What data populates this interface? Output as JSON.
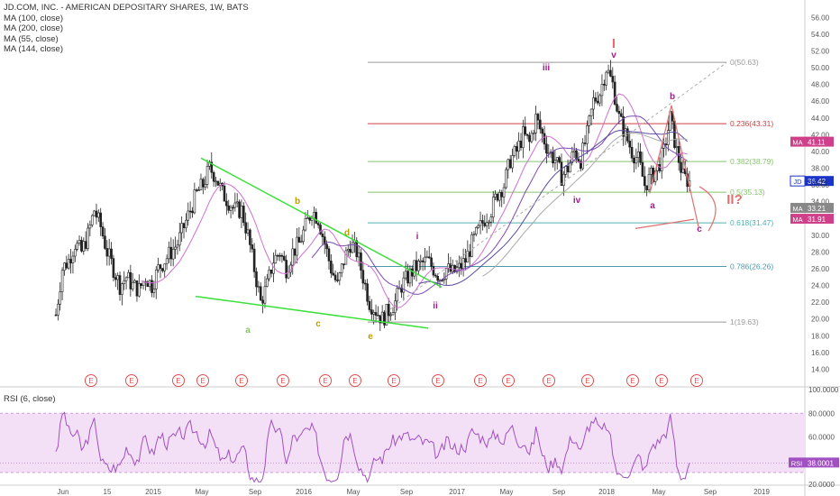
{
  "legend": {
    "title": "JD.COM, INC. - AMERICAN DEPOSITARY SHARES, 1W, BATS",
    "ma_lines": [
      "MA (100, close)",
      "MA (200, close)",
      "MA (55, close)",
      "MA (144, close)"
    ]
  },
  "rsi_legend": "RSI (6, close)",
  "colors": {
    "candle": "#222222",
    "ma_purple": "#7b4ab5",
    "ma_pink": "#d070d0",
    "trend_green": "#3ce03c",
    "fib_red": "#d04040",
    "fib_green": "#86c56d",
    "fib_teal": "#50b0b0",
    "fib_blue": "#4a9aaa",
    "fib_gray": "#999999",
    "wave_purple": "#a0208a",
    "rsi_line": "#a050c0",
    "rsi_band": "#f3e0f7",
    "earnings": "#e05050"
  },
  "chart_data": [
    {
      "type": "candlestick",
      "title": "JD.COM, INC. - AMERICAN DEPOSITARY SHARES, 1W, BATS",
      "ylim": [
        12,
        57
      ],
      "y_ticks": [
        "56.00",
        "54.00",
        "52.00",
        "50.00",
        "48.00",
        "46.00",
        "44.00",
        "42.00",
        "40.00",
        "38.00",
        "36.00",
        "34.00",
        "32.00",
        "30.00",
        "28.00",
        "26.00",
        "24.00",
        "22.00",
        "20.00",
        "18.00",
        "16.00",
        "14.00"
      ],
      "x_ticks": [
        "Jun",
        "15",
        "2015",
        "May",
        "Sep",
        "2016",
        "May",
        "Sep",
        "2017",
        "May",
        "Sep",
        "2018",
        "May",
        "Sep",
        "2019"
      ],
      "close_path": [
        [
          0,
          20.5
        ],
        [
          3,
          26
        ],
        [
          6,
          27
        ],
        [
          9,
          29
        ],
        [
          12,
          28
        ],
        [
          15,
          30
        ],
        [
          18,
          33
        ],
        [
          21,
          31
        ],
        [
          24,
          28
        ],
        [
          27,
          26
        ],
        [
          30,
          24
        ],
        [
          33,
          25
        ],
        [
          36,
          24
        ],
        [
          39,
          23.5
        ],
        [
          42,
          25
        ],
        [
          45,
          24
        ],
        [
          48,
          26
        ],
        [
          51,
          27
        ],
        [
          54,
          28
        ],
        [
          57,
          29
        ],
        [
          60,
          31
        ],
        [
          63,
          33
        ],
        [
          66,
          35
        ],
        [
          69,
          36
        ],
        [
          72,
          38
        ],
        [
          75,
          37
        ],
        [
          78,
          35
        ],
        [
          81,
          34
        ],
        [
          84,
          33
        ],
        [
          87,
          33
        ],
        [
          90,
          30
        ],
        [
          93,
          26
        ],
        [
          96,
          22
        ],
        [
          99,
          24
        ],
        [
          102,
          27
        ],
        [
          105,
          28
        ],
        [
          108,
          26
        ],
        [
          111,
          28
        ],
        [
          114,
          29
        ],
        [
          117,
          31
        ],
        [
          120,
          33
        ],
        [
          123,
          32
        ],
        [
          126,
          29
        ],
        [
          129,
          26
        ],
        [
          132,
          24
        ],
        [
          135,
          27
        ],
        [
          138,
          29
        ],
        [
          141,
          28
        ],
        [
          144,
          25
        ],
        [
          147,
          22
        ],
        [
          150,
          21
        ],
        [
          153,
          20
        ],
        [
          156,
          21
        ],
        [
          159,
          22
        ],
        [
          162,
          24
        ],
        [
          165,
          25
        ],
        [
          168,
          26
        ],
        [
          171,
          26.5
        ],
        [
          174,
          27
        ],
        [
          177,
          26
        ],
        [
          180,
          25
        ],
        [
          183,
          26
        ],
        [
          186,
          25.5
        ],
        [
          189,
          26
        ],
        [
          192,
          27
        ],
        [
          195,
          29
        ],
        [
          198,
          30.5
        ],
        [
          201,
          32
        ],
        [
          204,
          33
        ],
        [
          207,
          35
        ],
        [
          210,
          36
        ],
        [
          213,
          39
        ],
        [
          216,
          40
        ],
        [
          219,
          42
        ],
        [
          222,
          41
        ],
        [
          225,
          44
        ],
        [
          228,
          42
        ],
        [
          231,
          40
        ],
        [
          234,
          39
        ],
        [
          237,
          37
        ],
        [
          240,
          38
        ],
        [
          243,
          40
        ],
        [
          246,
          39
        ],
        [
          249,
          42
        ],
        [
          252,
          46
        ],
        [
          255,
          47
        ],
        [
          258,
          50
        ],
        [
          261,
          48
        ],
        [
          264,
          44
        ],
        [
          267,
          42
        ],
        [
          270,
          40
        ],
        [
          273,
          39
        ],
        [
          276,
          36
        ],
        [
          279,
          37
        ],
        [
          282,
          38
        ],
        [
          285,
          40
        ],
        [
          288,
          44
        ],
        [
          291,
          40
        ],
        [
          294,
          37
        ],
        [
          297,
          36.4
        ]
      ],
      "series": [
        {
          "name": "MA (100, close)",
          "values": []
        },
        {
          "name": "MA (200, close)",
          "values": []
        },
        {
          "name": "MA (55, close)",
          "values": []
        },
        {
          "name": "MA (144, close)",
          "values": []
        }
      ],
      "fibonacci": [
        {
          "label": "0(50.63)",
          "value": 50.63
        },
        {
          "label": "0.236(43.31)",
          "value": 43.31
        },
        {
          "label": "0.382(38.79)",
          "value": 38.79
        },
        {
          "label": "0.5(35.13)",
          "value": 35.13
        },
        {
          "label": "0.618(31.47)",
          "value": 31.47
        },
        {
          "label": "0.786(26.26)",
          "value": 26.26
        },
        {
          "label": "1(19.63)",
          "value": 19.63
        }
      ],
      "annotations": {
        "wave_labels": [
          "a",
          "b",
          "c",
          "d",
          "e",
          "i",
          "ii",
          "iii",
          "iv",
          "v",
          "I",
          "a",
          "b",
          "c",
          "II?"
        ],
        "earnings_marker": "E"
      },
      "price_labels": [
        {
          "label": "MA",
          "value": "41.11"
        },
        {
          "label": "JD",
          "value": "36.42"
        },
        {
          "label": "",
          "value": "36.21"
        },
        {
          "label": "MA",
          "value": "33.21"
        },
        {
          "label": "MA",
          "value": "31.91"
        }
      ]
    },
    {
      "type": "line",
      "title": "RSI (6, close)",
      "ylim": [
        20,
        100
      ],
      "y_ticks": [
        "100.0000",
        "80.0000",
        "60.0000",
        "40.0000",
        "20.0000"
      ],
      "band": [
        30,
        80
      ],
      "last_value": "38.0001",
      "last_label": "RSI"
    }
  ]
}
